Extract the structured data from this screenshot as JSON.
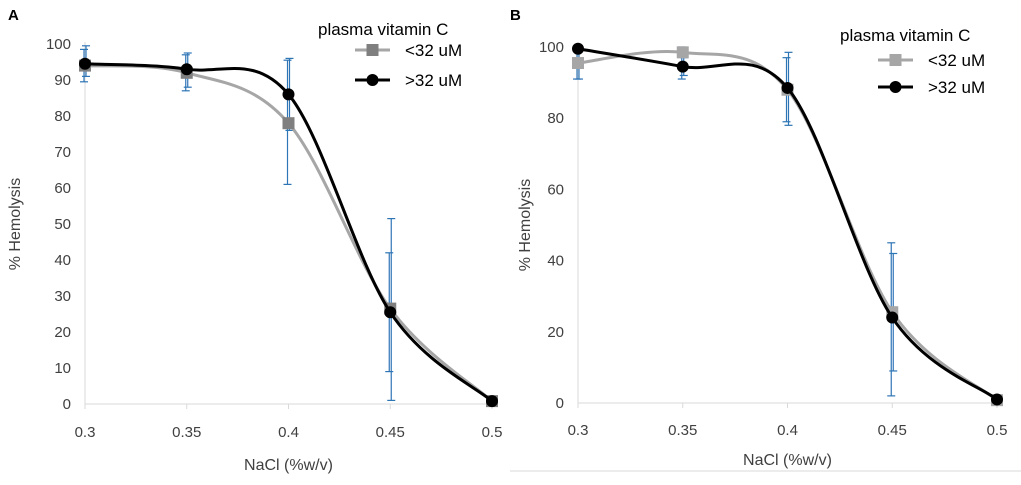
{
  "colors": {
    "series_low": "#a6a6a6",
    "series_low_marker": "#7f7f7f",
    "series_high": "#000000",
    "error_bar": "#2e75b6",
    "axis": "#d9d9d9"
  },
  "chart_data": [
    {
      "type": "line",
      "panel": "A",
      "xlabel": "NaCl (%w/v)",
      "ylabel": "% Hemolysis",
      "xlim": [
        0.3,
        0.5
      ],
      "ylim": [
        0,
        100
      ],
      "x": [
        0.3,
        0.35,
        0.4,
        0.45,
        0.5
      ],
      "xticks": [
        "0.3",
        "0.35",
        "0.4",
        "0.45",
        "0.5"
      ],
      "yticks": [
        "0",
        "10",
        "20",
        "30",
        "40",
        "50",
        "60",
        "70",
        "80",
        "90",
        "100"
      ],
      "yticks_values": [
        0,
        10,
        20,
        30,
        40,
        50,
        60,
        70,
        80,
        90,
        100
      ],
      "legend_title": "plasma vitamin C",
      "legend_position": "top-right",
      "series": [
        {
          "name": "<32 uM",
          "values": [
            94,
            92,
            78,
            26.5,
            0.8
          ],
          "err_low": [
            89.5,
            87,
            61,
            9,
            0.2
          ],
          "err_high": [
            98.5,
            97,
            95.5,
            42,
            1.2
          ]
        },
        {
          "name": ">32 uM",
          "values": [
            94.5,
            93,
            86,
            25.5,
            0.8
          ],
          "err_low": [
            91,
            88,
            76,
            1,
            0.2
          ],
          "err_high": [
            99.5,
            97.5,
            96,
            51.5,
            1.2
          ]
        }
      ]
    },
    {
      "type": "line",
      "panel": "B",
      "xlabel": "NaCl (%w/v)",
      "ylabel": "% Hemolysis",
      "xlim": [
        0.3,
        0.5
      ],
      "ylim": [
        0,
        100
      ],
      "x": [
        0.3,
        0.35,
        0.4,
        0.45,
        0.5
      ],
      "xticks": [
        "0.3",
        "0.35",
        "0.4",
        "0.45",
        "0.5"
      ],
      "yticks": [
        "0",
        "20",
        "40",
        "60",
        "80",
        "100"
      ],
      "yticks_values": [
        0,
        20,
        40,
        60,
        80,
        100
      ],
      "legend_title": "plasma vitamin C",
      "legend_position": "top-right",
      "series": [
        {
          "name": "<32 uM",
          "values": [
            95.5,
            98.5,
            88,
            25.5,
            0.8
          ],
          "err_low": [
            91,
            91,
            79,
            2,
            0.2
          ],
          "err_high": [
            100,
            100,
            97,
            45,
            1.2
          ]
        },
        {
          "name": ">32 uM",
          "values": [
            99.5,
            94.5,
            88.5,
            24,
            1
          ],
          "err_low": [
            91,
            92,
            78,
            9,
            0.2
          ],
          "err_high": [
            100,
            97,
            98.5,
            42,
            1.5
          ]
        }
      ]
    }
  ]
}
